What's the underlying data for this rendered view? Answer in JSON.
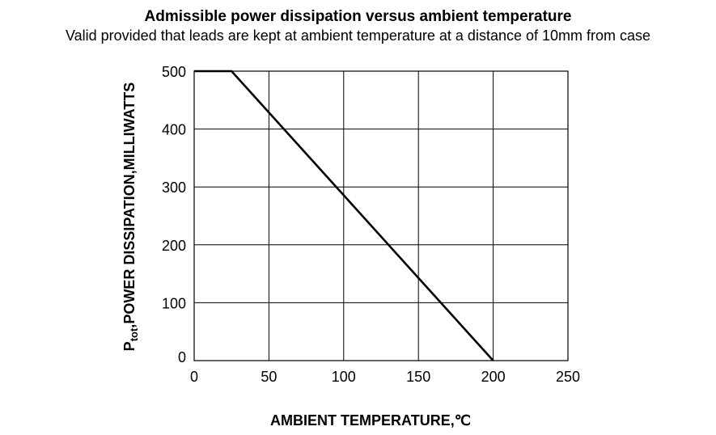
{
  "chart_data": {
    "type": "line",
    "title": "Admissible power dissipation versus ambient temperature",
    "subtitle": "Valid provided that leads are kept at ambient temperature at a distance of 10mm from case",
    "xlabel": "AMBIENT TEMPERATURE,℃",
    "ylabel_prefix": "P",
    "ylabel_subscript": "tot",
    "ylabel_rest": ",POWER DISSIPATION,MILLIWATTS",
    "xlim": [
      0,
      250
    ],
    "ylim": [
      0,
      500
    ],
    "xticks": [
      0,
      50,
      100,
      150,
      200,
      250
    ],
    "yticks": [
      0,
      100,
      200,
      300,
      400,
      500
    ],
    "xtick_labels": [
      "0",
      "50",
      "100",
      "150",
      "200",
      "250"
    ],
    "ytick_labels": [
      "0",
      "100",
      "200",
      "300",
      "400",
      "500"
    ],
    "grid": true,
    "series": [
      {
        "x": [
          0,
          25,
          200
        ],
        "y": [
          500,
          500,
          0
        ]
      }
    ],
    "colors": {
      "line": "#000000",
      "grid": "#000000",
      "background": "#ffffff"
    }
  }
}
